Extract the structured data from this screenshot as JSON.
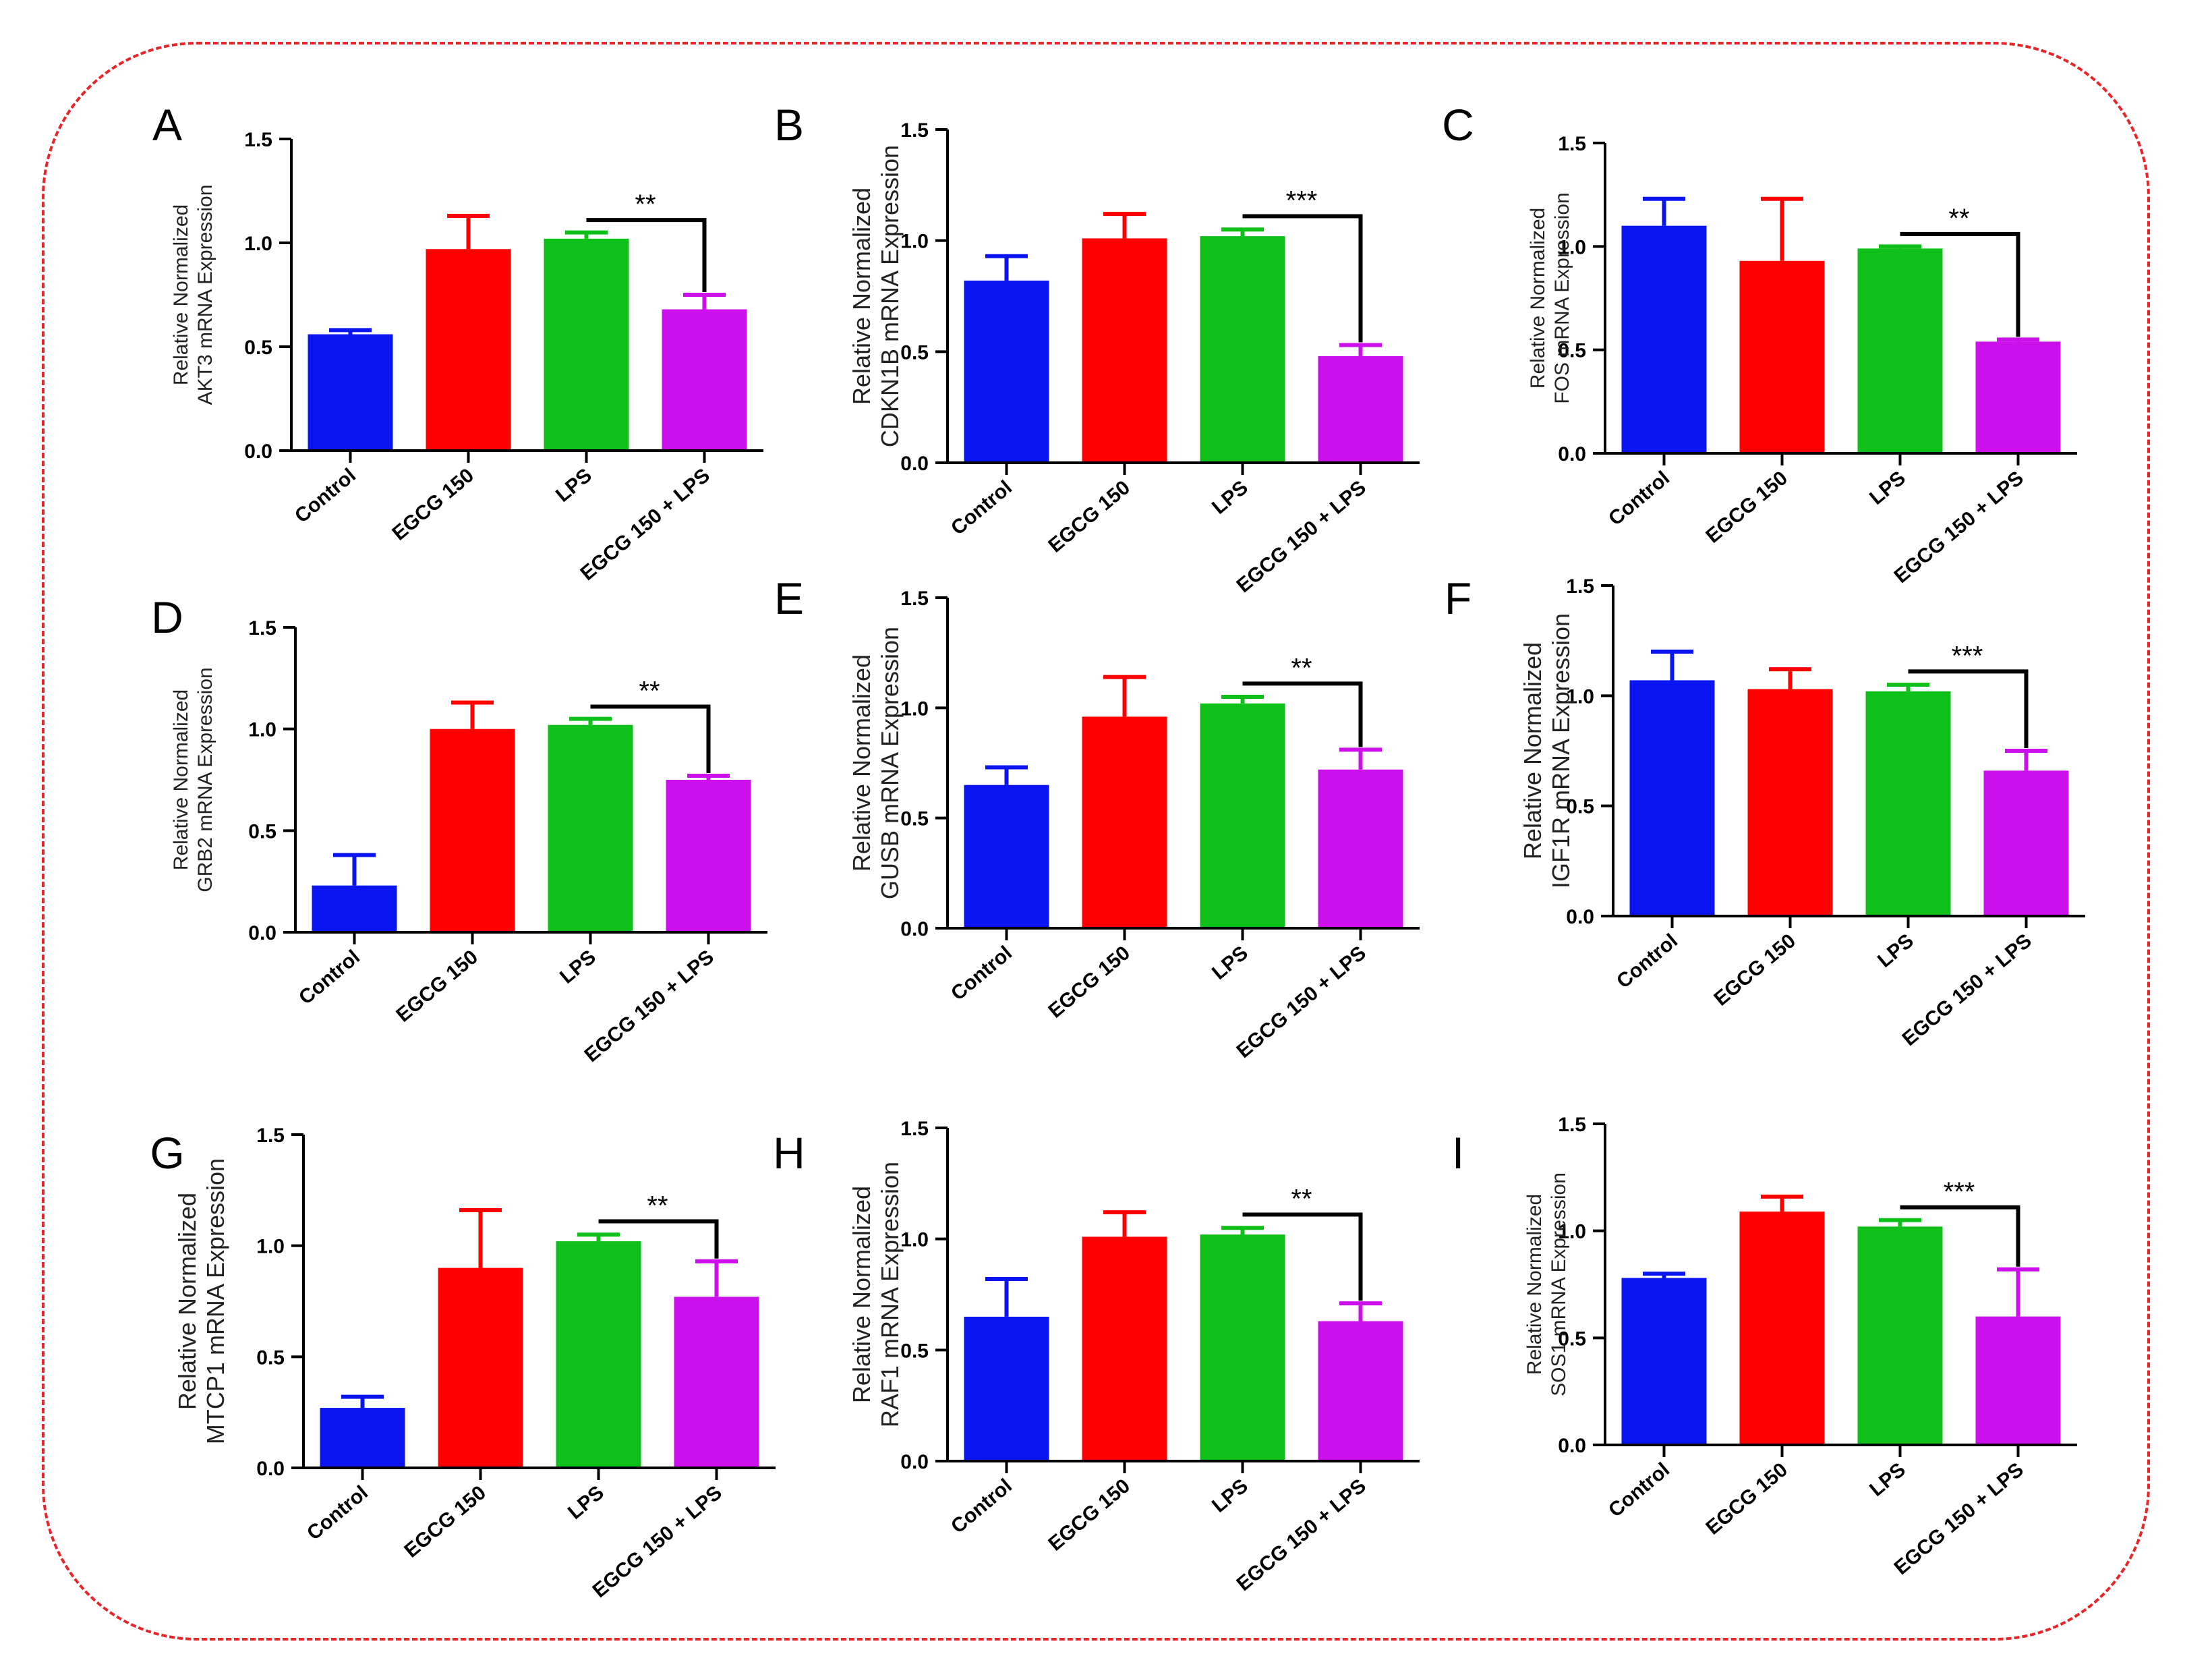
{
  "colors": {
    "frame": "#e8262a",
    "axis": "#000000",
    "series": [
      "#0a14f0",
      "#ff0000",
      "#10c01a",
      "#cc10ec"
    ]
  },
  "chart_data": [
    {
      "type": "bar",
      "panel": "A",
      "xlabel": "",
      "ylabel": [
        "Relative Normalized",
        "AKT3 mRNA Expression"
      ],
      "ylim": [
        0,
        1.5
      ],
      "yticks": [
        "0.0",
        "0.5",
        "1.0",
        "1.5"
      ],
      "categories": [
        "Control",
        "EGCG 150",
        "LPS",
        "EGCG 150 + LPS"
      ],
      "values": [
        0.56,
        0.97,
        1.02,
        0.68
      ],
      "errors": [
        0.02,
        0.16,
        0.03,
        0.07
      ],
      "annotation": {
        "text": "**",
        "from": 2,
        "to": 3
      }
    },
    {
      "type": "bar",
      "panel": "B",
      "xlabel": "",
      "ylabel": [
        "Relative Normalized",
        "CDKN1B mRNA Expression"
      ],
      "ylim": [
        0,
        1.5
      ],
      "yticks": [
        "0.0",
        "0.5",
        "1.0",
        "1.5"
      ],
      "categories": [
        "Control",
        "EGCG 150",
        "LPS",
        "EGCG 150 + LPS"
      ],
      "values": [
        0.82,
        1.01,
        1.02,
        0.48
      ],
      "errors": [
        0.11,
        0.11,
        0.03,
        0.05
      ],
      "annotation": {
        "text": "***",
        "from": 2,
        "to": 3
      }
    },
    {
      "type": "bar",
      "panel": "C",
      "xlabel": "",
      "ylabel": [
        "Relative Normalized",
        "FOS mRNA Expression"
      ],
      "ylim": [
        0,
        1.5
      ],
      "yticks": [
        "0.0",
        "0.5",
        "1.0",
        "1.5"
      ],
      "categories": [
        "Control",
        "EGCG 150",
        "LPS",
        "EGCG 150 + LPS"
      ],
      "values": [
        1.1,
        0.93,
        0.99,
        0.54
      ],
      "errors": [
        0.13,
        0.3,
        0.01,
        0.01
      ],
      "annotation": {
        "text": "**",
        "from": 2,
        "to": 3
      }
    },
    {
      "type": "bar",
      "panel": "D",
      "xlabel": "",
      "ylabel": [
        "Relative Normalized",
        "GRB2 mRNA Expression"
      ],
      "ylim": [
        0,
        1.5
      ],
      "yticks": [
        "0.0",
        "0.5",
        "1.0",
        "1.5"
      ],
      "categories": [
        "Control",
        "EGCG 150",
        "LPS",
        "EGCG 150 + LPS"
      ],
      "values": [
        0.23,
        1.0,
        1.02,
        0.75
      ],
      "errors": [
        0.15,
        0.13,
        0.03,
        0.02
      ],
      "annotation": {
        "text": "**",
        "from": 2,
        "to": 3
      }
    },
    {
      "type": "bar",
      "panel": "E",
      "xlabel": "",
      "ylabel": [
        "Relative Normalized",
        "GUSB mRNA Expression"
      ],
      "ylim": [
        0,
        1.5
      ],
      "yticks": [
        "0.0",
        "0.5",
        "1.0",
        "1.5"
      ],
      "categories": [
        "Control",
        "EGCG 150",
        "LPS",
        "EGCG 150 + LPS"
      ],
      "values": [
        0.65,
        0.96,
        1.02,
        0.72
      ],
      "errors": [
        0.08,
        0.18,
        0.03,
        0.09
      ],
      "annotation": {
        "text": "**",
        "from": 2,
        "to": 3
      }
    },
    {
      "type": "bar",
      "panel": "F",
      "xlabel": "",
      "ylabel": [
        "Relative Normalized",
        "IGF1R mRNA Expression"
      ],
      "ylim": [
        0,
        1.5
      ],
      "yticks": [
        "0.0",
        "0.5",
        "1.0",
        "1.5"
      ],
      "categories": [
        "Control",
        "EGCG 150",
        "LPS",
        "EGCG 150 + LPS"
      ],
      "values": [
        1.07,
        1.03,
        1.02,
        0.66
      ],
      "errors": [
        0.13,
        0.09,
        0.03,
        0.09
      ],
      "annotation": {
        "text": "***",
        "from": 2,
        "to": 3
      }
    },
    {
      "type": "bar",
      "panel": "G",
      "xlabel": "",
      "ylabel": [
        "Relative Normalized",
        "MTCP1 mRNA Expression"
      ],
      "ylim": [
        0,
        1.5
      ],
      "yticks": [
        "0.0",
        "0.5",
        "1.0",
        "1.5"
      ],
      "categories": [
        "Control",
        "EGCG 150",
        "LPS",
        "EGCG 150 + LPS"
      ],
      "values": [
        0.27,
        0.9,
        1.02,
        0.77
      ],
      "errors": [
        0.05,
        0.26,
        0.03,
        0.16
      ],
      "annotation": {
        "text": "**",
        "from": 2,
        "to": 3
      }
    },
    {
      "type": "bar",
      "panel": "H",
      "xlabel": "",
      "ylabel": [
        "Relative Normalized",
        "RAF1 mRNA Expression"
      ],
      "ylim": [
        0,
        1.5
      ],
      "yticks": [
        "0.0",
        "0.5",
        "1.0",
        "1.5"
      ],
      "categories": [
        "Control",
        "EGCG 150",
        "LPS",
        "EGCG 150 + LPS"
      ],
      "values": [
        0.65,
        1.01,
        1.02,
        0.63
      ],
      "errors": [
        0.17,
        0.11,
        0.03,
        0.08
      ],
      "annotation": {
        "text": "**",
        "from": 2,
        "to": 3
      }
    },
    {
      "type": "bar",
      "panel": "I",
      "xlabel": "",
      "ylabel": [
        "Relative Normalized",
        "SOS1 mRNA Expression"
      ],
      "ylim": [
        0,
        1.5
      ],
      "yticks": [
        "0.0",
        "0.5",
        "1.0",
        "1.5"
      ],
      "categories": [
        "Control",
        "EGCG 150",
        "LPS",
        "EGCG 150 + LPS"
      ],
      "values": [
        0.78,
        1.09,
        1.02,
        0.6
      ],
      "errors": [
        0.02,
        0.07,
        0.03,
        0.22
      ],
      "annotation": {
        "text": "***",
        "from": 2,
        "to": 3
      }
    }
  ]
}
